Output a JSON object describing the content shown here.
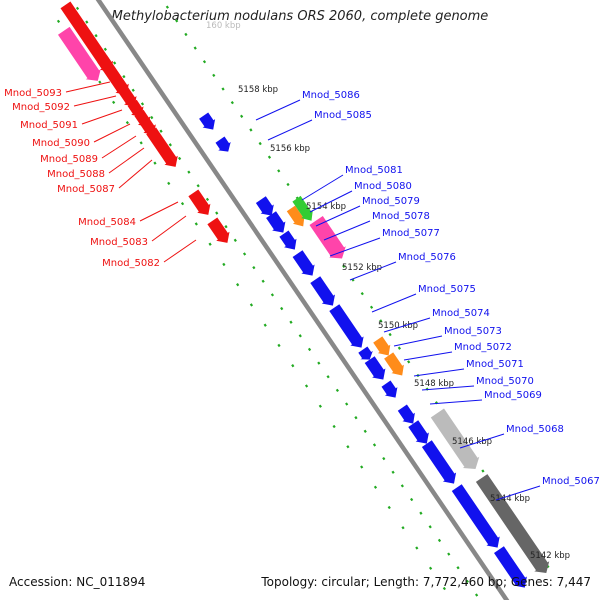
{
  "title": "Methylobacterium nodulans ORS 2060, complete genome",
  "accession": "Accession: NC_011894",
  "topology": "Topology: circular; Length: 7,772,460 bp; Genes: 7,447",
  "colors": {
    "strand_minus": "#ee1111",
    "strand_plus": "#1111ee",
    "backbone": "#888888",
    "tick_dot": "#22aa22",
    "orange": "#ff8c1a",
    "green": "#33cc33",
    "pink": "#ff44aa",
    "gray": "#bbbbbb",
    "darkgray": "#666666"
  },
  "ticks": [
    "5158 kbp",
    "5156 kbp",
    "5154 kbp",
    "5152 kbp",
    "5150 kbp",
    "5148 kbp",
    "5146 kbp",
    "5144 kbp",
    "5142 kbp"
  ],
  "partial_tick": "160 kbp",
  "left_labels": [
    "Mnod_5093",
    "Mnod_5092",
    "Mnod_5091",
    "Mnod_5090",
    "Mnod_5089",
    "Mnod_5088",
    "Mnod_5087",
    "Mnod_5084",
    "Mnod_5083",
    "Mnod_5082"
  ],
  "right_labels": [
    "Mnod_5086",
    "Mnod_5085",
    "Mnod_5081",
    "Mnod_5080",
    "Mnod_5079",
    "Mnod_5078",
    "Mnod_5077",
    "Mnod_5076",
    "Mnod_5075",
    "Mnod_5074",
    "Mnod_5073",
    "Mnod_5072",
    "Mnod_5071",
    "Mnod_5070",
    "Mnod_5069",
    "Mnod_5068",
    "Mnod_5067"
  ]
}
